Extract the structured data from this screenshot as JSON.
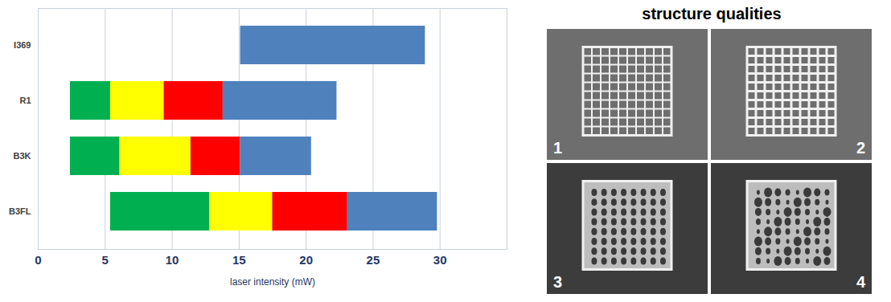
{
  "chart_data": {
    "type": "bar",
    "orientation": "horizontal",
    "categories": [
      "I369",
      "R1",
      "B3K",
      "B3FL"
    ],
    "xlabel": "laser intensity (mW)",
    "xlim": [
      0,
      35
    ],
    "xticks": [
      0,
      5,
      10,
      15,
      20,
      25,
      30
    ],
    "grid": true,
    "series": [
      {
        "color": "#00b050",
        "starts": [
          null,
          2.4,
          2.4,
          5.4
        ],
        "ends": [
          null,
          5.4,
          6.1,
          12.8
        ]
      },
      {
        "color": "#ffff00",
        "starts": [
          null,
          5.4,
          6.1,
          12.8
        ],
        "ends": [
          null,
          9.4,
          11.4,
          17.5
        ]
      },
      {
        "color": "#ff0000",
        "starts": [
          null,
          9.4,
          11.4,
          17.5
        ],
        "ends": [
          null,
          13.8,
          15.1,
          23.1
        ]
      },
      {
        "color": "#4f81bd",
        "starts": [
          15.1,
          13.8,
          15.1,
          23.1
        ],
        "ends": [
          28.9,
          22.3,
          20.4,
          29.8
        ]
      }
    ]
  },
  "image_panel": {
    "title": "structure qualities",
    "panels": [
      "1",
      "2",
      "3",
      "4"
    ]
  }
}
